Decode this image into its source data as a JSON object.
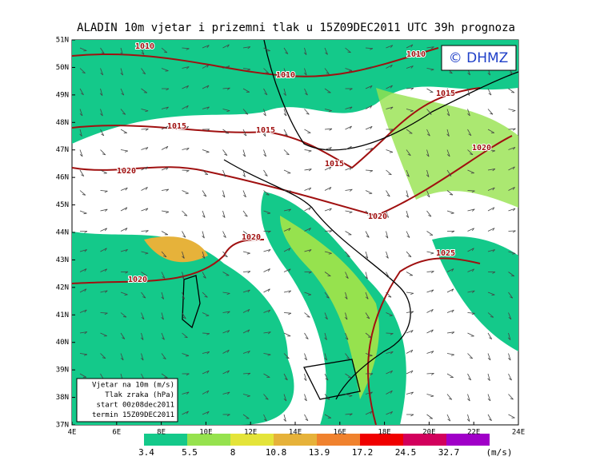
{
  "header": {
    "title": "ALADIN 10m vjetar i prizemni tlak u 15Z09DEC2011 UTC 39h prognoza",
    "copyright": "© DHMZ"
  },
  "map": {
    "lat_labels": [
      "51N",
      "50N",
      "49N",
      "48N",
      "47N",
      "46N",
      "45N",
      "44N",
      "43N",
      "42N",
      "41N",
      "40N",
      "39N",
      "38N",
      "37N"
    ],
    "lon_labels": [
      "4E",
      "6E",
      "8E",
      "10E",
      "12E",
      "14E",
      "16E",
      "18E",
      "20E",
      "22E",
      "24E"
    ],
    "isobar_labels": [
      "1010",
      "1010",
      "1010",
      "1015",
      "1015",
      "1015",
      "1015",
      "1020",
      "1020",
      "1020",
      "1020",
      "1025",
      "1020"
    ]
  },
  "info_box": {
    "lines": [
      "Vjetar na 10m (m/s)",
      "Tlak zraka (hPa)",
      "start 00z08dec2011",
      "termin 15Z09DEC2011"
    ]
  },
  "colorbar": {
    "values": [
      3.4,
      5.5,
      8,
      10.8,
      13.9,
      17.2,
      24.5,
      32.7
    ],
    "unit": "(m/s)",
    "colors": [
      "#14c98a",
      "#96e24e",
      "#e4e43a",
      "#e6b23a",
      "#f0822e",
      "#f00000",
      "#d2005c",
      "#a000c8"
    ]
  }
}
